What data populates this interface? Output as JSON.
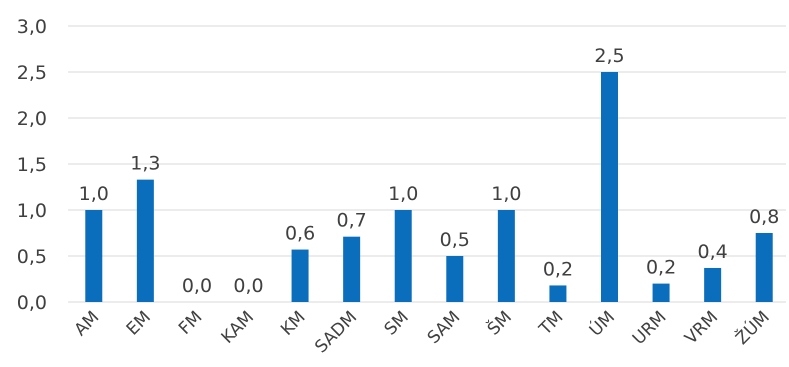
{
  "chart_data": {
    "type": "bar",
    "title": "",
    "xlabel": "",
    "ylabel": "",
    "categories": [
      "AM",
      "EM",
      "FM",
      "KAM",
      "KM",
      "SADM",
      "SM",
      "SAM",
      "ŠM",
      "TM",
      "ÚM",
      "URM",
      "VRM",
      "ŽÚM"
    ],
    "values": [
      1.0,
      1.3,
      0.0,
      0.0,
      0.6,
      0.7,
      1.0,
      0.5,
      1.0,
      0.2,
      2.5,
      0.2,
      0.4,
      0.8
    ],
    "bar_heights": [
      1.0,
      1.33,
      0.0,
      0.0,
      0.57,
      0.71,
      1.0,
      0.5,
      1.0,
      0.18,
      2.5,
      0.2,
      0.37,
      0.75
    ],
    "data_labels": [
      "1,0",
      "1,3",
      "0,0",
      "0,0",
      "0,6",
      "0,7",
      "1,0",
      "0,5",
      "1,0",
      "0,2",
      "2,5",
      "0,2",
      "0,4",
      "0,8"
    ],
    "y_ticks": [
      "0,0",
      "0,5",
      "1,0",
      "1,5",
      "2,0",
      "2,5",
      "3,0"
    ],
    "y_tick_values": [
      0,
      0.5,
      1.0,
      1.5,
      2.0,
      2.5,
      3.0
    ],
    "ylim": [
      0,
      3.0
    ],
    "grid": true,
    "legend": "none",
    "bar_color": "#0a6ebd",
    "grid_color": "#d9d9d9",
    "text_color": "#404040"
  }
}
